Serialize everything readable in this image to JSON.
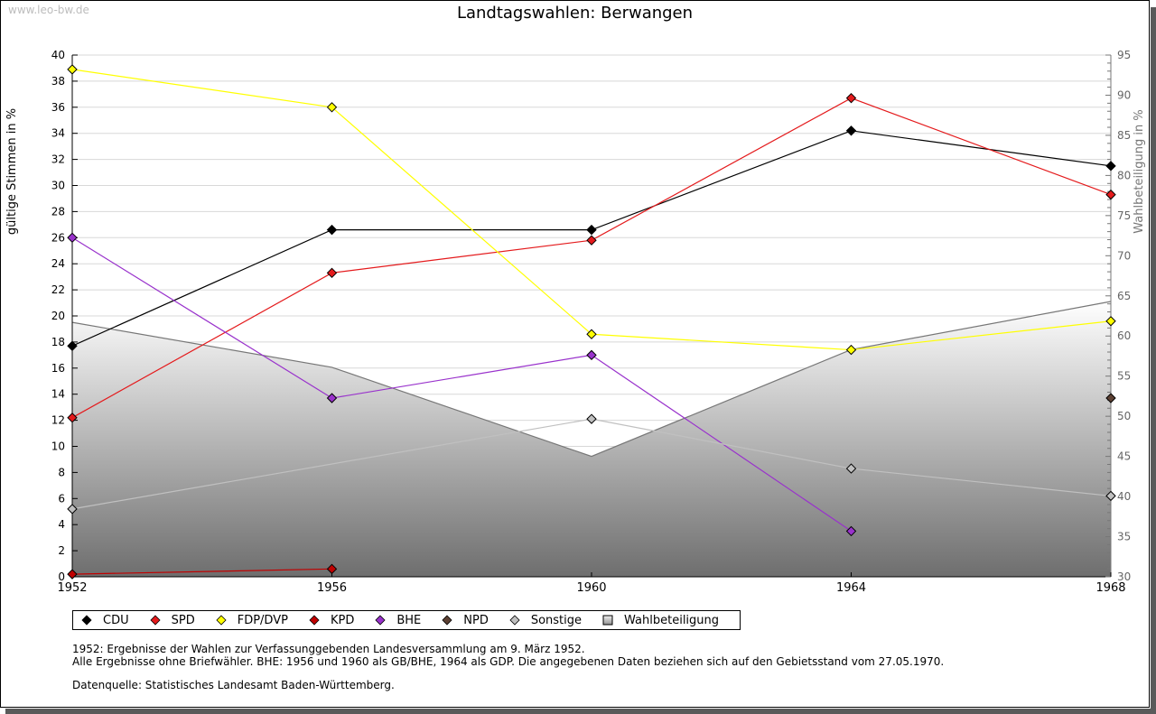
{
  "watermark": "www.leo-bw.de",
  "chart_data": {
    "type": "line",
    "title": "Landtagswahlen: Berwangen",
    "xlabel": "",
    "ylabel": "gültige Stimmen in %",
    "y2label": "Wahlbeteiligung in %",
    "x": [
      1952,
      1956,
      1960,
      1964,
      1968
    ],
    "x_tick_labels": [
      "1952",
      "1956",
      "1960",
      "1964",
      "1968"
    ],
    "ylim": [
      0,
      40
    ],
    "y_ticks": [
      0,
      2,
      4,
      6,
      8,
      10,
      12,
      14,
      16,
      18,
      20,
      22,
      24,
      26,
      28,
      30,
      32,
      34,
      36,
      38,
      40
    ],
    "y2lim": [
      30,
      95
    ],
    "y2_ticks": [
      30,
      35,
      40,
      45,
      50,
      55,
      60,
      65,
      70,
      75,
      80,
      85,
      90,
      95
    ],
    "grid": true,
    "legend_position": "bottom",
    "series": [
      {
        "name": "CDU",
        "color": "#000000",
        "values": [
          17.7,
          26.6,
          26.6,
          34.2,
          31.5
        ]
      },
      {
        "name": "SPD",
        "color": "#e41a1c",
        "values": [
          12.2,
          23.3,
          25.8,
          36.7,
          29.3
        ]
      },
      {
        "name": "FDP/DVP",
        "color": "#ffff00",
        "values": [
          38.9,
          36.0,
          18.6,
          17.4,
          19.6
        ]
      },
      {
        "name": "KPD",
        "color": "#c00000",
        "values": [
          0.2,
          0.6,
          null,
          null,
          null
        ]
      },
      {
        "name": "BHE",
        "color": "#9932cc",
        "values": [
          26.0,
          13.7,
          17.0,
          3.5,
          null
        ]
      },
      {
        "name": "NPD",
        "color": "#5c4033",
        "values": [
          null,
          null,
          null,
          null,
          13.7
        ]
      },
      {
        "name": "Sonstige",
        "color": "#c0c0c0",
        "values": [
          5.2,
          null,
          12.1,
          8.3,
          6.2
        ]
      }
    ],
    "area_series": {
      "name": "Wahlbeteiligung",
      "axis": "right",
      "values": [
        61.7,
        56.1,
        45.0,
        58.3,
        64.3
      ]
    }
  },
  "legend": [
    {
      "label": "CDU",
      "color": "#000000",
      "shape": "diamond"
    },
    {
      "label": "SPD",
      "color": "#e41a1c",
      "shape": "diamond"
    },
    {
      "label": "FDP/DVP",
      "color": "#ffff00",
      "shape": "diamond"
    },
    {
      "label": "KPD",
      "color": "#c00000",
      "shape": "diamond"
    },
    {
      "label": "BHE",
      "color": "#9932cc",
      "shape": "diamond"
    },
    {
      "label": "NPD",
      "color": "#5c4033",
      "shape": "diamond"
    },
    {
      "label": "Sonstige",
      "color": "#c0c0c0",
      "shape": "diamond"
    },
    {
      "label": "Wahlbeteiligung",
      "color": "#c8c8c8",
      "shape": "square"
    }
  ],
  "notes": [
    "1952: Ergebnisse der Wahlen zur Verfassunggebenden Landesversammlung am 9. März 1952.",
    "Alle Ergebnisse ohne Briefwähler. BHE: 1956 und 1960 als GB/BHE, 1964 als GDP. Die angegebenen Daten beziehen sich auf den Gebietsstand vom 27.05.1970."
  ],
  "source": "Datenquelle: Statistisches Landesamt Baden-Württemberg."
}
